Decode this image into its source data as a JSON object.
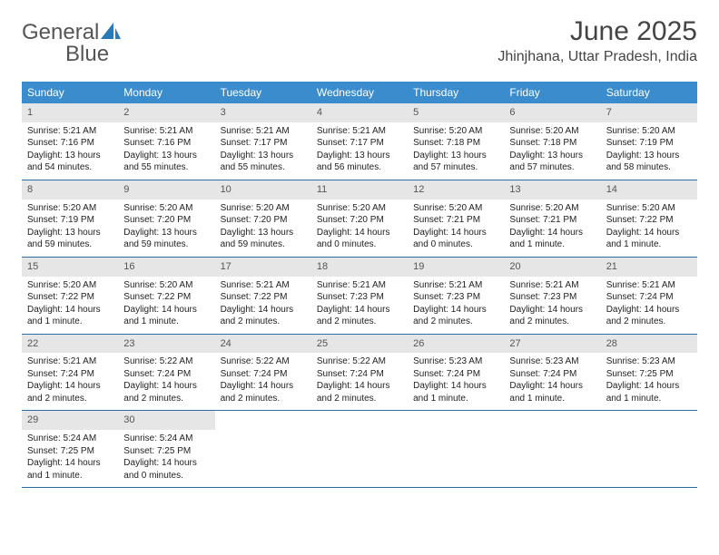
{
  "logo": {
    "part1": "General",
    "part2": "Blue"
  },
  "title": "June 2025",
  "location": "Jhinjhana, Uttar Pradesh, India",
  "dayHeaders": [
    "Sunday",
    "Monday",
    "Tuesday",
    "Wednesday",
    "Thursday",
    "Friday",
    "Saturday"
  ],
  "colors": {
    "headerBg": "#3b8ccc",
    "headerText": "#ffffff",
    "dayNumBg": "#e6e6e6",
    "borderColor": "#2a6fa5",
    "logoGray": "#555555",
    "logoBlue": "#2a7ab8"
  },
  "weeks": [
    [
      {
        "day": "1",
        "sunrise": "5:21 AM",
        "sunset": "7:16 PM",
        "daylight": "13 hours and 54 minutes."
      },
      {
        "day": "2",
        "sunrise": "5:21 AM",
        "sunset": "7:16 PM",
        "daylight": "13 hours and 55 minutes."
      },
      {
        "day": "3",
        "sunrise": "5:21 AM",
        "sunset": "7:17 PM",
        "daylight": "13 hours and 55 minutes."
      },
      {
        "day": "4",
        "sunrise": "5:21 AM",
        "sunset": "7:17 PM",
        "daylight": "13 hours and 56 minutes."
      },
      {
        "day": "5",
        "sunrise": "5:20 AM",
        "sunset": "7:18 PM",
        "daylight": "13 hours and 57 minutes."
      },
      {
        "day": "6",
        "sunrise": "5:20 AM",
        "sunset": "7:18 PM",
        "daylight": "13 hours and 57 minutes."
      },
      {
        "day": "7",
        "sunrise": "5:20 AM",
        "sunset": "7:19 PM",
        "daylight": "13 hours and 58 minutes."
      }
    ],
    [
      {
        "day": "8",
        "sunrise": "5:20 AM",
        "sunset": "7:19 PM",
        "daylight": "13 hours and 59 minutes."
      },
      {
        "day": "9",
        "sunrise": "5:20 AM",
        "sunset": "7:20 PM",
        "daylight": "13 hours and 59 minutes."
      },
      {
        "day": "10",
        "sunrise": "5:20 AM",
        "sunset": "7:20 PM",
        "daylight": "13 hours and 59 minutes."
      },
      {
        "day": "11",
        "sunrise": "5:20 AM",
        "sunset": "7:20 PM",
        "daylight": "14 hours and 0 minutes."
      },
      {
        "day": "12",
        "sunrise": "5:20 AM",
        "sunset": "7:21 PM",
        "daylight": "14 hours and 0 minutes."
      },
      {
        "day": "13",
        "sunrise": "5:20 AM",
        "sunset": "7:21 PM",
        "daylight": "14 hours and 1 minute."
      },
      {
        "day": "14",
        "sunrise": "5:20 AM",
        "sunset": "7:22 PM",
        "daylight": "14 hours and 1 minute."
      }
    ],
    [
      {
        "day": "15",
        "sunrise": "5:20 AM",
        "sunset": "7:22 PM",
        "daylight": "14 hours and 1 minute."
      },
      {
        "day": "16",
        "sunrise": "5:20 AM",
        "sunset": "7:22 PM",
        "daylight": "14 hours and 1 minute."
      },
      {
        "day": "17",
        "sunrise": "5:21 AM",
        "sunset": "7:22 PM",
        "daylight": "14 hours and 2 minutes."
      },
      {
        "day": "18",
        "sunrise": "5:21 AM",
        "sunset": "7:23 PM",
        "daylight": "14 hours and 2 minutes."
      },
      {
        "day": "19",
        "sunrise": "5:21 AM",
        "sunset": "7:23 PM",
        "daylight": "14 hours and 2 minutes."
      },
      {
        "day": "20",
        "sunrise": "5:21 AM",
        "sunset": "7:23 PM",
        "daylight": "14 hours and 2 minutes."
      },
      {
        "day": "21",
        "sunrise": "5:21 AM",
        "sunset": "7:24 PM",
        "daylight": "14 hours and 2 minutes."
      }
    ],
    [
      {
        "day": "22",
        "sunrise": "5:21 AM",
        "sunset": "7:24 PM",
        "daylight": "14 hours and 2 minutes."
      },
      {
        "day": "23",
        "sunrise": "5:22 AM",
        "sunset": "7:24 PM",
        "daylight": "14 hours and 2 minutes."
      },
      {
        "day": "24",
        "sunrise": "5:22 AM",
        "sunset": "7:24 PM",
        "daylight": "14 hours and 2 minutes."
      },
      {
        "day": "25",
        "sunrise": "5:22 AM",
        "sunset": "7:24 PM",
        "daylight": "14 hours and 2 minutes."
      },
      {
        "day": "26",
        "sunrise": "5:23 AM",
        "sunset": "7:24 PM",
        "daylight": "14 hours and 1 minute."
      },
      {
        "day": "27",
        "sunrise": "5:23 AM",
        "sunset": "7:24 PM",
        "daylight": "14 hours and 1 minute."
      },
      {
        "day": "28",
        "sunrise": "5:23 AM",
        "sunset": "7:25 PM",
        "daylight": "14 hours and 1 minute."
      }
    ],
    [
      {
        "day": "29",
        "sunrise": "5:24 AM",
        "sunset": "7:25 PM",
        "daylight": "14 hours and 1 minute."
      },
      {
        "day": "30",
        "sunrise": "5:24 AM",
        "sunset": "7:25 PM",
        "daylight": "14 hours and 0 minutes."
      },
      null,
      null,
      null,
      null,
      null
    ]
  ],
  "labels": {
    "sunrise": "Sunrise: ",
    "sunset": "Sunset: ",
    "daylight": "Daylight: "
  }
}
